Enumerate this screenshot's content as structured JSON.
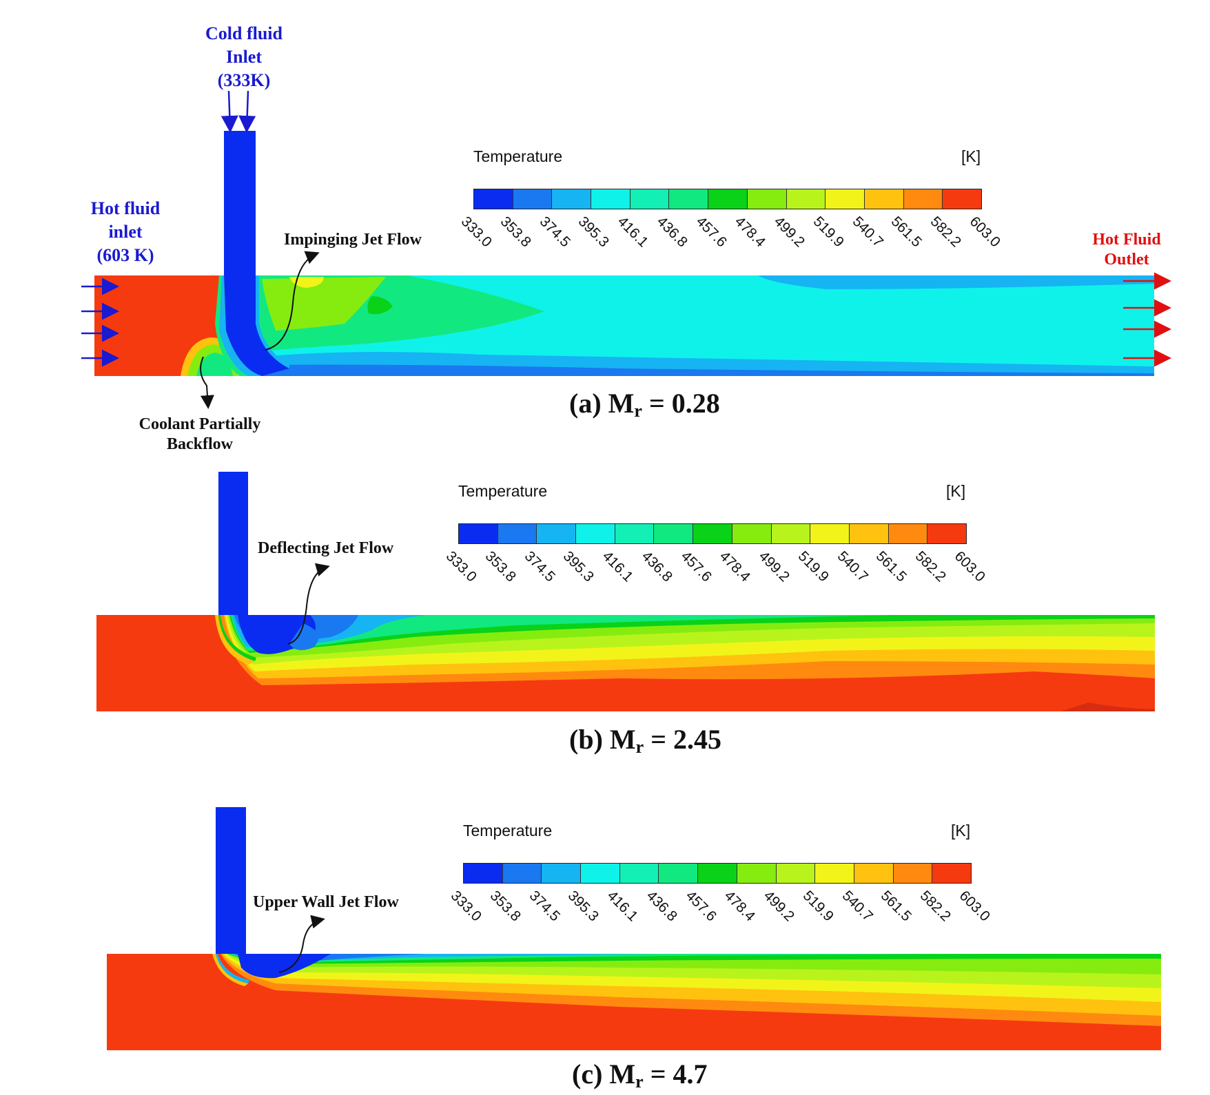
{
  "colorbar": {
    "title": "Temperature",
    "unit": "[K]",
    "ticks": [
      "333.0",
      "353.8",
      "374.5",
      "395.3",
      "416.1",
      "436.8",
      "457.6",
      "478.4",
      "499.2",
      "519.9",
      "540.7",
      "561.5",
      "582.2",
      "603.0"
    ],
    "colors": [
      "#0a2cf0",
      "#1a78f0",
      "#16b4f2",
      "#0ff2ea",
      "#12f0b6",
      "#12e880",
      "#09d218",
      "#86ec10",
      "#b8f41c",
      "#f2f419",
      "#ffc20f",
      "#ff8a0f",
      "#f53a10"
    ]
  },
  "annotations": {
    "cold_inlet": "Cold fluid\nInlet\n(333K)",
    "hot_inlet": "Hot fluid\ninlet\n(603 K)",
    "hot_outlet": "Hot Fluid\nOutlet",
    "impinging": "Impinging Jet Flow",
    "backflow": "Coolant Partially\nBackflow",
    "deflecting": "Deflecting Jet Flow",
    "upper_wall": "Upper Wall Jet Flow"
  },
  "panels": [
    {
      "label": "(a) M",
      "sub": "r",
      "value": " = 0.28"
    },
    {
      "label": "(b) M",
      "sub": "r",
      "value": " = 2.45"
    },
    {
      "label": "(c)  M",
      "sub": "r",
      "value": " = 4.7"
    }
  ]
}
